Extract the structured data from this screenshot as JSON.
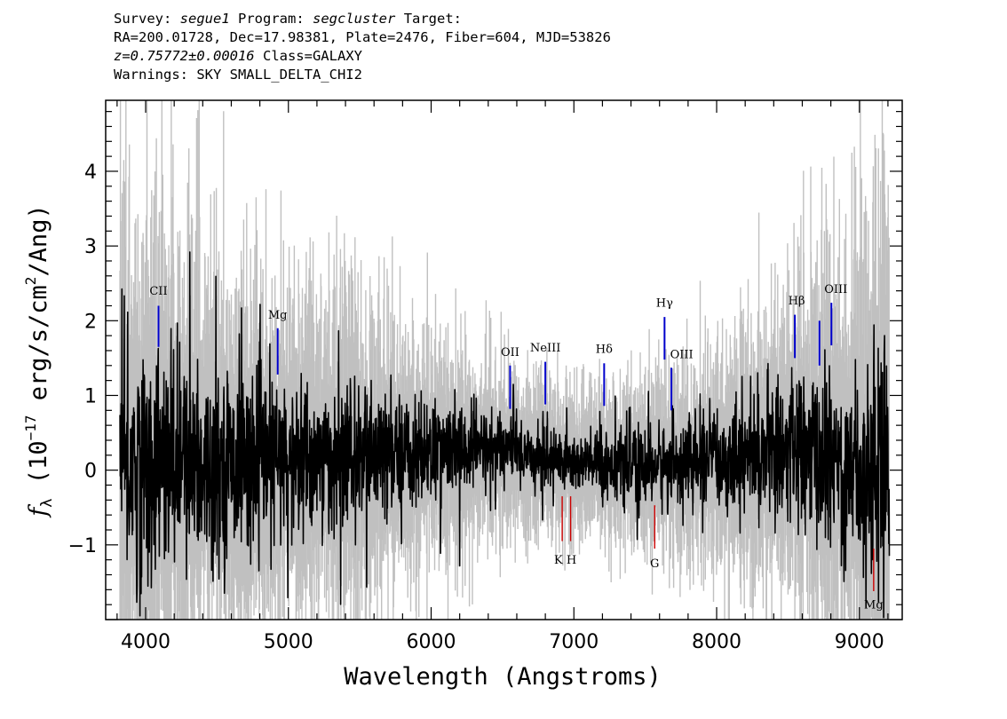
{
  "header": {
    "survey_label": "Survey:",
    "survey": "segue1",
    "program_label": "Program:",
    "program": "segcluster",
    "target_label": "Target:",
    "line2": "RA=200.01728, Dec=17.98381, Plate=2476, Fiber=604, MJD=53826",
    "redshift": "z=0.75772±0.00016",
    "class_text": "Class=GALAXY",
    "warnings": "Warnings: SKY SMALL_DELTA_CHI2"
  },
  "chart_data": {
    "type": "line",
    "xlabel": "Wavelength (Angstroms)",
    "ylabel_parts": {
      "f": "f",
      "sub": "λ",
      "open": " (10",
      "exp": "−17",
      "mid": " erg/s/cm",
      "exp2": "2",
      "close": "/Ang)"
    },
    "xlim": [
      3720,
      9300
    ],
    "ylim": [
      -2.0,
      4.95
    ],
    "x_ticks": [
      4000,
      5000,
      6000,
      7000,
      8000,
      9000
    ],
    "x_tick_labels": [
      "4000",
      "5000",
      "6000",
      "7000",
      "8000",
      "9000"
    ],
    "y_ticks": [
      -1,
      0,
      1,
      2,
      3,
      4
    ],
    "y_tick_labels": [
      "−1",
      "0",
      "1",
      "2",
      "3",
      "4"
    ],
    "x_minor_step": 200,
    "y_minor_step": 0.2,
    "series": [
      {
        "role": "flux",
        "color": "#000000",
        "continuum": [
          [
            3820,
            0.05
          ],
          [
            4500,
            0.1
          ],
          [
            5500,
            0.15
          ],
          [
            6000,
            0.25
          ],
          [
            6500,
            0.3
          ],
          [
            7000,
            0.1
          ],
          [
            7500,
            0.05
          ],
          [
            8000,
            0.15
          ],
          [
            8500,
            0.3
          ],
          [
            9000,
            0.0
          ],
          [
            9210,
            0.1
          ]
        ]
      },
      {
        "role": "noise",
        "color": "#c0c0c0",
        "sigma": [
          [
            3820,
            2.0
          ],
          [
            4500,
            1.4
          ],
          [
            5500,
            1.1
          ],
          [
            6000,
            0.8
          ],
          [
            6500,
            0.6
          ],
          [
            7000,
            0.5
          ],
          [
            7500,
            0.6
          ],
          [
            8000,
            0.8
          ],
          [
            8500,
            1.1
          ],
          [
            9000,
            1.6
          ],
          [
            9210,
            2.2
          ]
        ]
      }
    ],
    "emission_lines": [
      {
        "label": "CII",
        "x": 4090,
        "y0": 1.65,
        "y1": 2.2
      },
      {
        "label": "Mg",
        "x": 4925,
        "y0": 1.28,
        "y1": 1.9
      },
      {
        "label": "OII",
        "x": 6553,
        "y0": 0.82,
        "y1": 1.4
      },
      {
        "label": "NeIII",
        "x": 6800,
        "y0": 0.88,
        "y1": 1.45
      },
      {
        "label": "Hδ",
        "x": 7212,
        "y0": 0.86,
        "y1": 1.43
      },
      {
        "label": "Hγ",
        "x": 7635,
        "y0": 1.48,
        "y1": 2.05
      },
      {
        "label": "OIII",
        "x": 7683,
        "y0": 0.8,
        "y1": 1.37
      },
      {
        "label": "Hβ",
        "x": 8548,
        "y0": 1.5,
        "y1": 2.08
      },
      {
        "label": "",
        "x": 8720,
        "y0": 1.4,
        "y1": 2.0
      },
      {
        "label": "OIII",
        "x": 8804,
        "y0": 1.67,
        "y1": 2.24
      }
    ],
    "absorption_lines": [
      {
        "label": "",
        "x": 6918,
        "y0": -0.95,
        "y1": -0.35
      },
      {
        "label": "",
        "x": 6977,
        "y0": -0.95,
        "y1": -0.35
      },
      {
        "label": "G",
        "x": 7566,
        "y0": -1.05,
        "y1": -0.47
      },
      {
        "label": "Mg",
        "x": 9100,
        "y0": -1.62,
        "y1": -1.05
      }
    ],
    "absorption_group_labels": [
      {
        "label": "K H",
        "x": 6940,
        "y": -1.25
      }
    ],
    "line_label_positions": {
      "CII": [
        4090,
        2.35
      ],
      "Mg": [
        4925,
        2.03
      ],
      "OII": [
        6553,
        1.53
      ],
      "NeIII": [
        6800,
        1.59
      ],
      "Hδ": [
        7212,
        1.57
      ],
      "Hγ": [
        7635,
        2.19
      ],
      "OIII_a": [
        7755,
        1.5
      ],
      "Hβ": [
        8560,
        2.22
      ],
      "OIII_b": [
        8835,
        2.37
      ],
      "G": [
        7566,
        -1.3
      ],
      "Mg_abs": [
        9100,
        -1.85
      ]
    }
  }
}
